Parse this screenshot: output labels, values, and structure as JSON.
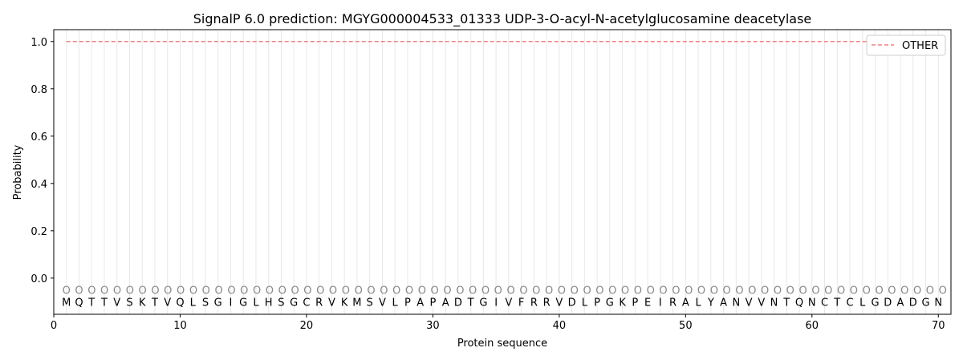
{
  "chart_data": {
    "type": "line",
    "title": "SignalP 6.0 prediction: MGYG000004533_01333 UDP-3-O-acyl-N-acetylglucosamine deacetylase",
    "xlabel": "Protein sequence",
    "ylabel": "Probability",
    "xlim": [
      0,
      71
    ],
    "ylim": [
      -0.153,
      1.05
    ],
    "xticks": [
      0,
      10,
      20,
      30,
      40,
      50,
      60,
      70
    ],
    "yticks": [
      0.0,
      0.2,
      0.4,
      0.6,
      0.8,
      1.0
    ],
    "ytick_labels": [
      "0.0",
      "0.2",
      "0.4",
      "0.6",
      "0.8",
      "1.0"
    ],
    "grid": "vertical lines at each residue",
    "legend_position": "top-right",
    "sequence": [
      "M",
      "Q",
      "T",
      "T",
      "V",
      "S",
      "K",
      "T",
      "V",
      "Q",
      "L",
      "S",
      "G",
      "I",
      "G",
      "L",
      "H",
      "S",
      "G",
      "C",
      "R",
      "V",
      "K",
      "M",
      "S",
      "V",
      "L",
      "P",
      "A",
      "P",
      "A",
      "D",
      "T",
      "G",
      "I",
      "V",
      "F",
      "R",
      "R",
      "V",
      "D",
      "L",
      "P",
      "G",
      "K",
      "P",
      "E",
      "I",
      "R",
      "A",
      "L",
      "Y",
      "A",
      "N",
      "V",
      "V",
      "N",
      "T",
      "Q",
      "N",
      "C",
      "T",
      "C",
      "L",
      "G",
      "D",
      "A",
      "D",
      "G",
      "N"
    ],
    "predicted_labels": "OOOOOOOOOOOOOOOOOOOOOOOOOOOOOOOOOOOOOOOOOOOOOOOOOOOOOOOOOOOOOOOOOOOOOO",
    "series": [
      {
        "name": "OTHER",
        "color": "#f08080",
        "style": "dashed",
        "x_range": [
          1,
          70
        ],
        "value": 1.0
      }
    ]
  }
}
